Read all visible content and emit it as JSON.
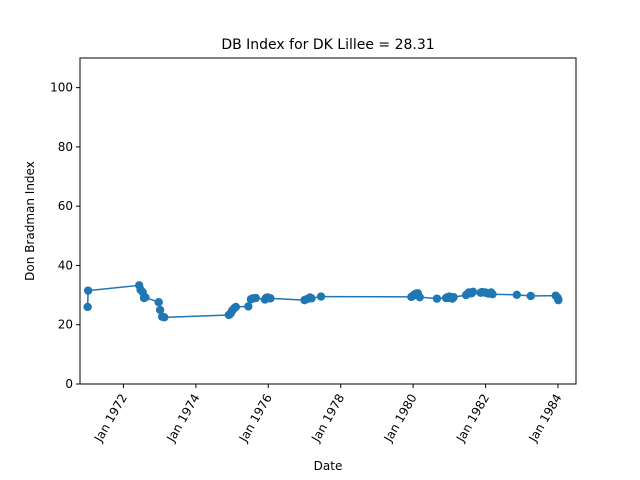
{
  "chart_data": {
    "type": "line",
    "title": "DB Index for DK Lillee = 28.31",
    "xlabel": "Date",
    "ylabel": "Don Bradman Index",
    "ylim": [
      0,
      110
    ],
    "xlim": [
      "1970-10-20",
      "1984-07-01"
    ],
    "y_ticks": [
      0,
      20,
      40,
      60,
      80,
      100
    ],
    "x_ticks": [
      "1972-01-01",
      "1974-01-01",
      "1976-01-01",
      "1978-01-01",
      "1980-01-01",
      "1982-01-01",
      "1984-01-01"
    ],
    "x_tick_labels": [
      "Jan 1972",
      "Jan 1974",
      "Jan 1976",
      "Jan 1978",
      "Jan 1980",
      "Jan 1982",
      "Jan 1984"
    ],
    "grid": false,
    "line_color": "#1f77b4",
    "series": [
      {
        "x": [
          "1971-01-05",
          "1971-01-10",
          "1972-06-08",
          "1972-06-22",
          "1972-07-13",
          "1972-07-27",
          "1972-08-10",
          "1972-12-22",
          "1973-01-05",
          "1973-01-26",
          "1973-02-16",
          "1974-11-29",
          "1974-12-13",
          "1974-12-26",
          "1975-01-04",
          "1975-01-25",
          "1975-02-08",
          "1975-06-14",
          "1975-07-10",
          "1975-07-31",
          "1975-08-28",
          "1975-11-28",
          "1975-12-12",
          "1975-12-26",
          "1976-01-03",
          "1976-01-23",
          "1977-01-01",
          "1977-01-28",
          "1977-02-25",
          "1977-03-12",
          "1977-06-16",
          "1979-12-14",
          "1979-12-29",
          "1980-01-10",
          "1980-02-01",
          "1980-02-18",
          "1980-03-08",
          "1980-08-28",
          "1980-11-28",
          "1980-12-12",
          "1980-12-26",
          "1981-01-02",
          "1981-01-30",
          "1981-02-13",
          "1981-06-18",
          "1981-07-02",
          "1981-07-16",
          "1981-08-13",
          "1981-08-27",
          "1981-11-13",
          "1981-11-27",
          "1981-12-26",
          "1982-01-02",
          "1982-01-30",
          "1982-02-26",
          "1982-03-12",
          "1982-11-12",
          "1983-04-01",
          "1983-12-09",
          "1983-12-26",
          "1984-01-02",
          "1984-01-05"
        ],
        "values": [
          26.0,
          31.5,
          33.3,
          31.8,
          31.0,
          29.0,
          29.2,
          27.6,
          25.0,
          22.7,
          22.5,
          23.3,
          23.6,
          24.3,
          24.9,
          25.6,
          26.0,
          26.2,
          28.6,
          28.9,
          29.0,
          28.5,
          29.1,
          29.2,
          29.0,
          28.9,
          28.3,
          28.7,
          29.2,
          28.9,
          29.5,
          29.4,
          29.7,
          30.1,
          30.5,
          30.6,
          29.3,
          28.8,
          29.0,
          29.3,
          29.1,
          29.5,
          28.8,
          29.3,
          30.0,
          30.4,
          30.9,
          30.6,
          31.1,
          30.8,
          31.0,
          30.9,
          30.8,
          30.5,
          30.9,
          30.3,
          30.1,
          29.7,
          29.8,
          29.2,
          28.8,
          28.3
        ]
      }
    ]
  }
}
